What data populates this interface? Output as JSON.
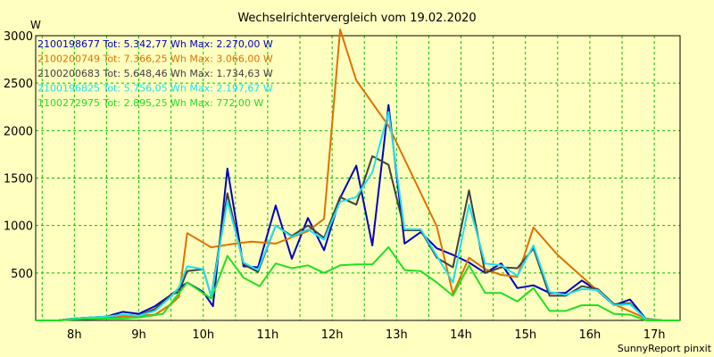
{
  "chart_data": {
    "type": "line",
    "title": "Wechselrichtervergleich vom 19.02.2020",
    "ylabel": "W",
    "footer": "SunnyReport pinxit",
    "x_ticks": [
      "8h",
      "9h",
      "10h",
      "11h",
      "12h",
      "13h",
      "14h",
      "15h",
      "16h",
      "17h"
    ],
    "xlim": [
      7.4,
      17.4
    ],
    "ylim": [
      0,
      3000
    ],
    "y_ticks": [
      500,
      1000,
      1500,
      2000,
      2500,
      3000
    ],
    "grid": true,
    "legend_position": "top-left",
    "series": [
      {
        "name": "2100198677 Tot: 5.342,77 Wh Max: 2.270,00 W",
        "color": "#0000c0",
        "points": [
          [
            7.4,
            0
          ],
          [
            7.75,
            0
          ],
          [
            8.0,
            20
          ],
          [
            8.25,
            30
          ],
          [
            8.5,
            40
          ],
          [
            8.75,
            90
          ],
          [
            9.0,
            70
          ],
          [
            9.25,
            150
          ],
          [
            9.5,
            270
          ],
          [
            9.75,
            400
          ],
          [
            10.0,
            300
          ],
          [
            10.1,
            200
          ],
          [
            10.15,
            150
          ],
          [
            10.375,
            1600
          ],
          [
            10.625,
            570
          ],
          [
            10.85,
            560
          ],
          [
            11.125,
            1210
          ],
          [
            11.375,
            650
          ],
          [
            11.625,
            1080
          ],
          [
            11.875,
            740
          ],
          [
            12.125,
            1290
          ],
          [
            12.375,
            1630
          ],
          [
            12.625,
            790
          ],
          [
            12.875,
            2270
          ],
          [
            13.125,
            810
          ],
          [
            13.375,
            930
          ],
          [
            13.625,
            760
          ],
          [
            13.875,
            690
          ],
          [
            14.125,
            610
          ],
          [
            14.375,
            500
          ],
          [
            14.625,
            600
          ],
          [
            14.875,
            340
          ],
          [
            15.125,
            370
          ],
          [
            15.375,
            290
          ],
          [
            15.625,
            290
          ],
          [
            15.875,
            420
          ],
          [
            16.125,
            310
          ],
          [
            16.375,
            160
          ],
          [
            16.625,
            220
          ],
          [
            16.875,
            10
          ],
          [
            17.125,
            0
          ],
          [
            17.4,
            0
          ]
        ]
      },
      {
        "name": "2100200749 Tot: 7.366,25 Wh Max: 3.066,00 W",
        "color": "#e07000",
        "points": [
          [
            7.4,
            0
          ],
          [
            7.75,
            0
          ],
          [
            8.0,
            20
          ],
          [
            8.5,
            30
          ],
          [
            8.75,
            40
          ],
          [
            9.0,
            50
          ],
          [
            9.25,
            60
          ],
          [
            9.5,
            170
          ],
          [
            9.625,
            250
          ],
          [
            9.75,
            920
          ],
          [
            10.125,
            770
          ],
          [
            10.5,
            810
          ],
          [
            10.75,
            830
          ],
          [
            11.125,
            810
          ],
          [
            11.625,
            940
          ],
          [
            11.875,
            1070
          ],
          [
            12.125,
            3066
          ],
          [
            12.375,
            2530
          ],
          [
            12.875,
            2050
          ],
          [
            13.625,
            990
          ],
          [
            13.875,
            280
          ],
          [
            14.125,
            660
          ],
          [
            14.375,
            540
          ],
          [
            14.625,
            480
          ],
          [
            14.875,
            460
          ],
          [
            15.125,
            980
          ],
          [
            15.5,
            690
          ],
          [
            16.125,
            310
          ],
          [
            16.375,
            170
          ],
          [
            16.875,
            20
          ],
          [
            17.125,
            0
          ],
          [
            17.4,
            0
          ]
        ]
      },
      {
        "name": "2100200683 Tot: 5.648,46 Wh Max: 1.734,63 W",
        "color": "#404040",
        "points": [
          [
            7.4,
            0
          ],
          [
            7.75,
            0
          ],
          [
            8.0,
            20
          ],
          [
            8.25,
            30
          ],
          [
            8.5,
            40
          ],
          [
            8.75,
            60
          ],
          [
            9.0,
            50
          ],
          [
            9.25,
            120
          ],
          [
            9.5,
            270
          ],
          [
            9.625,
            300
          ],
          [
            9.75,
            520
          ],
          [
            10.0,
            540
          ],
          [
            10.125,
            250
          ],
          [
            10.375,
            1340
          ],
          [
            10.625,
            590
          ],
          [
            10.85,
            510
          ],
          [
            11.125,
            1000
          ],
          [
            11.375,
            890
          ],
          [
            11.625,
            1000
          ],
          [
            11.875,
            870
          ],
          [
            12.125,
            1300
          ],
          [
            12.375,
            1220
          ],
          [
            12.625,
            1730
          ],
          [
            12.875,
            1640
          ],
          [
            13.125,
            950
          ],
          [
            13.375,
            950
          ],
          [
            13.625,
            660
          ],
          [
            13.875,
            560
          ],
          [
            14.125,
            1370
          ],
          [
            14.375,
            500
          ],
          [
            14.625,
            560
          ],
          [
            14.875,
            550
          ],
          [
            15.125,
            760
          ],
          [
            15.375,
            260
          ],
          [
            15.625,
            260
          ],
          [
            15.875,
            360
          ],
          [
            16.125,
            330
          ],
          [
            16.375,
            170
          ],
          [
            16.625,
            180
          ],
          [
            16.875,
            10
          ],
          [
            17.125,
            0
          ],
          [
            17.4,
            0
          ]
        ]
      },
      {
        "name": "2100196825 Tot: 5.756,05 Wh Max: 2.197,67 W",
        "color": "#20e0f0",
        "points": [
          [
            7.4,
            0
          ],
          [
            7.75,
            0
          ],
          [
            8.0,
            20
          ],
          [
            8.25,
            30
          ],
          [
            8.5,
            40
          ],
          [
            8.75,
            60
          ],
          [
            9.0,
            50
          ],
          [
            9.25,
            100
          ],
          [
            9.5,
            250
          ],
          [
            9.625,
            350
          ],
          [
            9.75,
            570
          ],
          [
            10.0,
            540
          ],
          [
            10.125,
            250
          ],
          [
            10.375,
            1260
          ],
          [
            10.625,
            610
          ],
          [
            10.85,
            530
          ],
          [
            11.125,
            1000
          ],
          [
            11.375,
            880
          ],
          [
            11.625,
            960
          ],
          [
            11.875,
            850
          ],
          [
            12.125,
            1250
          ],
          [
            12.375,
            1300
          ],
          [
            12.625,
            1560
          ],
          [
            12.875,
            2197
          ],
          [
            13.125,
            960
          ],
          [
            13.375,
            960
          ],
          [
            13.625,
            680
          ],
          [
            13.875,
            400
          ],
          [
            14.125,
            1220
          ],
          [
            14.375,
            600
          ],
          [
            14.625,
            580
          ],
          [
            14.875,
            470
          ],
          [
            15.125,
            790
          ],
          [
            15.375,
            300
          ],
          [
            15.625,
            270
          ],
          [
            15.875,
            330
          ],
          [
            16.125,
            320
          ],
          [
            16.375,
            160
          ],
          [
            16.625,
            170
          ],
          [
            16.875,
            10
          ],
          [
            17.125,
            0
          ],
          [
            17.4,
            0
          ]
        ]
      },
      {
        "name": "1100272975 Tot: 2.895,25 Wh Max: 772,00 W",
        "color": "#20e020",
        "points": [
          [
            7.4,
            0
          ],
          [
            7.75,
            0
          ],
          [
            8.0,
            10
          ],
          [
            8.5,
            20
          ],
          [
            8.75,
            20
          ],
          [
            9.0,
            30
          ],
          [
            9.375,
            70
          ],
          [
            9.75,
            400
          ],
          [
            10.125,
            230
          ],
          [
            10.375,
            680
          ],
          [
            10.625,
            450
          ],
          [
            10.875,
            360
          ],
          [
            11.125,
            600
          ],
          [
            11.375,
            550
          ],
          [
            11.625,
            580
          ],
          [
            11.875,
            500
          ],
          [
            12.125,
            580
          ],
          [
            12.375,
            590
          ],
          [
            12.625,
            590
          ],
          [
            12.875,
            772
          ],
          [
            13.125,
            530
          ],
          [
            13.375,
            520
          ],
          [
            13.625,
            400
          ],
          [
            13.875,
            260
          ],
          [
            14.125,
            580
          ],
          [
            14.375,
            290
          ],
          [
            14.625,
            290
          ],
          [
            14.875,
            200
          ],
          [
            15.125,
            340
          ],
          [
            15.375,
            100
          ],
          [
            15.625,
            100
          ],
          [
            15.875,
            160
          ],
          [
            16.125,
            160
          ],
          [
            16.375,
            70
          ],
          [
            16.625,
            60
          ],
          [
            16.875,
            0
          ],
          [
            17.4,
            0
          ]
        ]
      }
    ]
  }
}
